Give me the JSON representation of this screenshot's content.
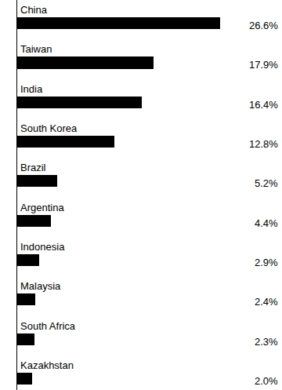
{
  "chart_data": {
    "type": "bar",
    "orientation": "horizontal",
    "categories": [
      "China",
      "Taiwan",
      "India",
      "South Korea",
      "Brazil",
      "Argentina",
      "Indonesia",
      "Malaysia",
      "South Africa",
      "Kazakhstan"
    ],
    "values": [
      26.6,
      17.9,
      16.4,
      12.8,
      5.2,
      4.4,
      2.9,
      2.4,
      2.3,
      2.0
    ],
    "value_labels": [
      "26.6%",
      "17.9%",
      "16.4%",
      "12.8%",
      "5.2%",
      "4.4%",
      "2.9%",
      "2.4%",
      "2.3%",
      "2.0%"
    ],
    "color": "#000000",
    "data_labels": true,
    "tick_labels": false,
    "grid": false
  }
}
